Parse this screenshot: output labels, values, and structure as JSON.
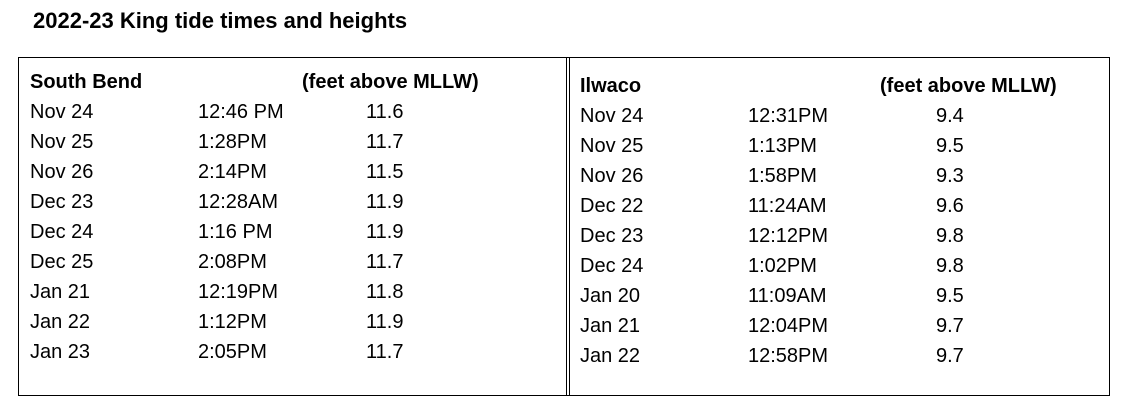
{
  "title": "2022-23 King tide times and heights",
  "tables": [
    {
      "location": "South Bend",
      "units": "(feet above MLLW)",
      "rows": [
        [
          "Nov 24",
          "12:46 PM",
          "11.6"
        ],
        [
          "Nov 25",
          "1:28PM",
          "11.7"
        ],
        [
          "Nov 26",
          "2:14PM",
          "11.5"
        ],
        [
          "Dec 23",
          "12:28AM",
          "11.9"
        ],
        [
          "Dec 24",
          "1:16 PM",
          "11.9"
        ],
        [
          "Dec 25",
          "2:08PM",
          "11.7"
        ],
        [
          "Jan 21",
          "12:19PM",
          "11.8"
        ],
        [
          "Jan 22",
          "1:12PM",
          "11.9"
        ],
        [
          "Jan 23",
          "2:05PM",
          "11.7"
        ]
      ]
    },
    {
      "location": "Ilwaco",
      "units": "(feet above MLLW)",
      "rows": [
        [
          "Nov 24",
          "12:31PM",
          "9.4"
        ],
        [
          "Nov 25",
          "1:13PM",
          "9.5"
        ],
        [
          "Nov 26",
          "1:58PM",
          "9.3"
        ],
        [
          "Dec 22",
          "11:24AM",
          "9.6"
        ],
        [
          "Dec 23",
          "12:12PM",
          "9.8"
        ],
        [
          "Dec 24",
          "1:02PM",
          "9.8"
        ],
        [
          "Jan 20",
          "11:09AM",
          "9.5"
        ],
        [
          "Jan 21",
          "12:04PM",
          "9.7"
        ],
        [
          "Jan 22",
          "12:58PM",
          "9.7"
        ]
      ]
    }
  ]
}
